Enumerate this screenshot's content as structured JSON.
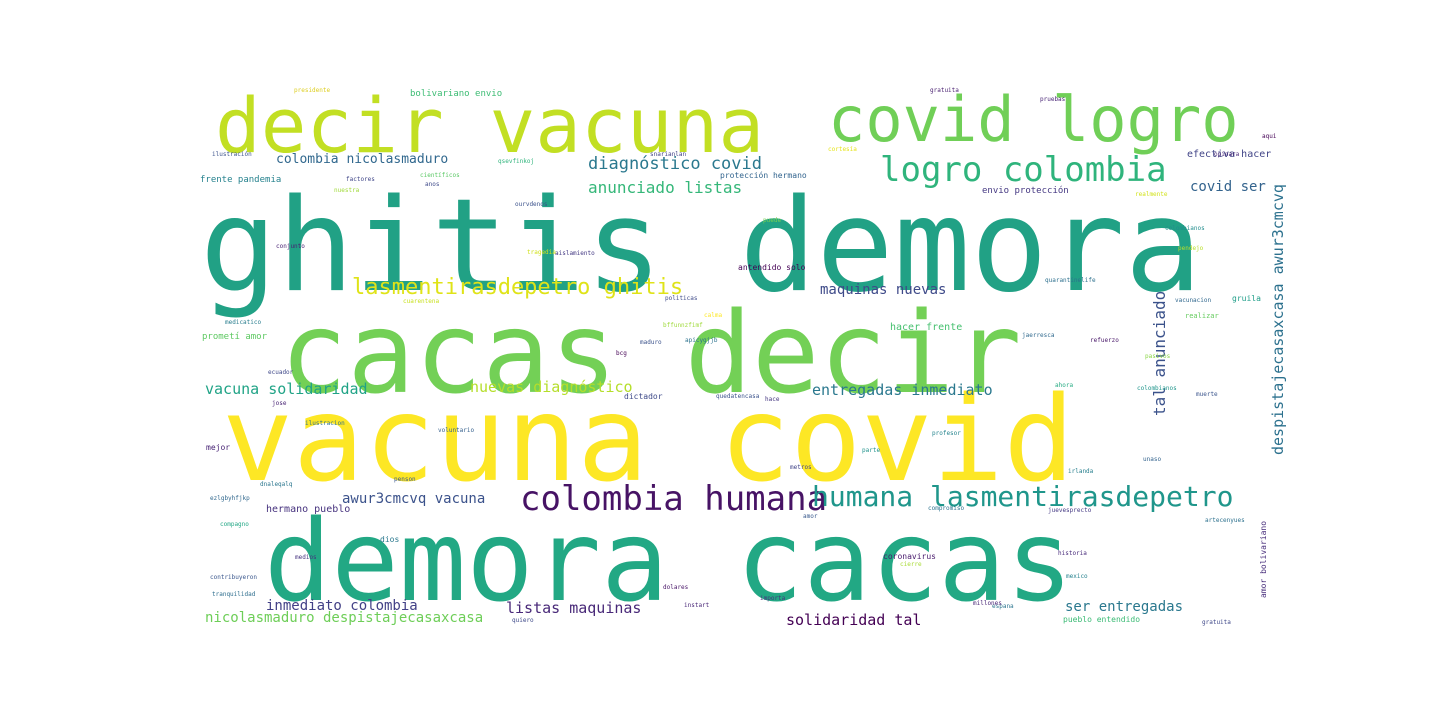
{
  "words": [
    {
      "text": "ghitis demora",
      "color": "#21a185"
    },
    {
      "text": "cacas decir",
      "color": "#73d056"
    },
    {
      "text": "vacuna covid",
      "color": "#fde725"
    },
    {
      "text": "demora cacas",
      "color": "#22a884"
    },
    {
      "text": "decir vacuna",
      "color": "#c2df23"
    },
    {
      "text": "covid logro",
      "color": "#70cf57"
    },
    {
      "text": "logro colombia",
      "color": "#2fb47c"
    },
    {
      "text": "colombia humana",
      "color": "#471365"
    },
    {
      "text": "humana lasmentirasdepetro",
      "color": "#1f968b"
    },
    {
      "text": "lasmentirasdepetro ghitis",
      "color": "#dfe318"
    },
    {
      "text": "despistajecasaxcasa awur3cmcvq",
      "color": "#2c718e"
    },
    {
      "text": "diagnóstico covid",
      "color": "#2a788e"
    },
    {
      "text": "anunciado listas",
      "color": "#35b779"
    },
    {
      "text": "covid ser",
      "color": "#33638d"
    },
    {
      "text": "maquinas nuevas",
      "color": "#3e4a89"
    },
    {
      "text": "tal anunciado",
      "color": "#3b528b"
    },
    {
      "text": "vacuna solidaridad",
      "color": "#20a386"
    },
    {
      "text": "nuevas diagnóstico",
      "color": "#b5de2b"
    },
    {
      "text": "entregadas inmediato",
      "color": "#2a788e"
    },
    {
      "text": "awur3cmcvq vacuna",
      "color": "#3b528b"
    },
    {
      "text": "inmediato colombia",
      "color": "#424086"
    },
    {
      "text": "listas maquinas",
      "color": "#482878"
    },
    {
      "text": "nicolasmaduro despistajecasaxcasa",
      "color": "#6ece58"
    },
    {
      "text": "solidaridad tal",
      "color": "#440154"
    },
    {
      "text": "ser entregadas",
      "color": "#2a788e"
    },
    {
      "text": "colombia nicolasmaduro",
      "color": "#31688e"
    },
    {
      "text": "efectiva hacer",
      "color": "#414487"
    },
    {
      "text": "bolivariano envio",
      "color": "#3dbc74"
    },
    {
      "text": "frente pandemia",
      "color": "#26828e"
    },
    {
      "text": "protección hermano",
      "color": "#32648e"
    },
    {
      "text": "envio protección",
      "color": "#453882"
    },
    {
      "text": "antendido solo",
      "color": "#440154"
    },
    {
      "text": "hacer frente",
      "color": "#46c06f"
    },
    {
      "text": "prometí amor",
      "color": "#5ec962"
    },
    {
      "text": "hermano pueblo",
      "color": "#46327e"
    },
    {
      "text": "pueblo entendido",
      "color": "#3bbb75"
    },
    {
      "text": "amor bolivariano",
      "color": "#472d7b"
    },
    {
      "text": "realizar",
      "color": "#65cb5e"
    },
    {
      "text": "gruila",
      "color": "#1f9e89"
    },
    {
      "text": "coronavirus",
      "color": "#481a6c"
    },
    {
      "text": "dictador",
      "color": "#3e4a89"
    },
    {
      "text": "mejor",
      "color": "#482475"
    },
    {
      "text": "dios",
      "color": "#2a788e"
    },
    {
      "text": "vacunacion",
      "color": "#31688e"
    },
    {
      "text": "voluntario",
      "color": "#35608d"
    },
    {
      "text": "profesor",
      "color": "#25848e"
    },
    {
      "text": "historia",
      "color": "#472a7a"
    },
    {
      "text": "mexico",
      "color": "#26828e"
    },
    {
      "text": "conjunto",
      "color": "#482173"
    },
    {
      "text": "ecuador",
      "color": "#3f4889"
    },
    {
      "text": "tranquilidad",
      "color": "#2e6e8e"
    },
    {
      "text": "contribuyeron",
      "color": "#39568c"
    },
    {
      "text": "cuarentena",
      "color": "#c8e020"
    },
    {
      "text": "ilustración",
      "color": "#3b528b"
    },
    {
      "text": "ilustracion",
      "color": "#2d708e"
    },
    {
      "text": "factores",
      "color": "#404688"
    },
    {
      "text": "nuestra",
      "color": "#a0da39"
    },
    {
      "text": "anos",
      "color": "#3e4989"
    },
    {
      "text": "qsevfinkoj",
      "color": "#2fb47c"
    },
    {
      "text": "snarianlan",
      "color": "#424186"
    },
    {
      "text": "científicos",
      "color": "#5ac864"
    },
    {
      "text": "ourvdenos",
      "color": "#3b528b"
    },
    {
      "text": "gratuita",
      "color": "#481f70"
    },
    {
      "text": "cortesía",
      "color": "#e5e419"
    },
    {
      "text": "presidente",
      "color": "#ddce20"
    },
    {
      "text": "aislamiento",
      "color": "#443983"
    },
    {
      "text": "tragedia",
      "color": "#d0e11c"
    },
    {
      "text": "pruebas",
      "color": "#482475"
    },
    {
      "text": "puede",
      "color": "#7ad151"
    },
    {
      "text": "realmente",
      "color": "#d2e21b"
    },
    {
      "text": "colombianos",
      "color": "#228d8d"
    },
    {
      "text": "quarantinelife",
      "color": "#2d708e"
    },
    {
      "text": "politicas",
      "color": "#3e4a89"
    },
    {
      "text": "bcg",
      "color": "#440154"
    },
    {
      "text": "maduro",
      "color": "#3b528b"
    },
    {
      "text": "apicygjjb",
      "color": "#2c728e"
    },
    {
      "text": "bffunnzfimf",
      "color": "#9fda3a"
    },
    {
      "text": "calma",
      "color": "#fde725"
    },
    {
      "text": "pendejo",
      "color": "#b8de29"
    },
    {
      "text": "jaerresca",
      "color": "#30698e"
    },
    {
      "text": "pasivos",
      "color": "#8bd646"
    },
    {
      "text": "refuerzo",
      "color": "#481769"
    },
    {
      "text": "muerte",
      "color": "#3a548c"
    },
    {
      "text": "colombianos",
      "color": "#1f958b"
    },
    {
      "text": "ahora",
      "color": "#25ab82"
    },
    {
      "text": "hace",
      "color": "#453581"
    },
    {
      "text": "metros",
      "color": "#414487"
    },
    {
      "text": "parte",
      "color": "#20928c"
    },
    {
      "text": "quedatencasa",
      "color": "#3b528b"
    },
    {
      "text": "instart",
      "color": "#482677"
    },
    {
      "text": "dolares",
      "color": "#481467"
    },
    {
      "text": "importa",
      "color": "#46327e"
    },
    {
      "text": "quiero",
      "color": "#3e4989"
    },
    {
      "text": "espana",
      "color": "#2b758e"
    },
    {
      "text": "millones",
      "color": "#482576"
    },
    {
      "text": "juevesprecto",
      "color": "#443983"
    },
    {
      "text": "compromiso",
      "color": "#2c728e"
    },
    {
      "text": "unaso",
      "color": "#33638d"
    },
    {
      "text": "irlanda",
      "color": "#277f8e"
    },
    {
      "text": "penson",
      "color": "#39568c"
    },
    {
      "text": "medios",
      "color": "#46337f"
    },
    {
      "text": "cierre",
      "color": "#a8db34"
    },
    {
      "text": "dnaleqalq",
      "color": "#2a768e"
    },
    {
      "text": "compagno",
      "color": "#22a785"
    },
    {
      "text": "amor",
      "color": "#38598c"
    },
    {
      "text": "artecenyues",
      "color": "#2d718e"
    },
    {
      "text": "gratuita",
      "color": "#3f4889"
    },
    {
      "text": "medicatico",
      "color": "#287d8e"
    },
    {
      "text": "opinara",
      "color": "#482878"
    },
    {
      "text": "aqui",
      "color": "#440154"
    },
    {
      "text": "ezlgbyhfjkp",
      "color": "#31688e"
    },
    {
      "text": "jose",
      "color": "#482374"
    }
  ]
}
